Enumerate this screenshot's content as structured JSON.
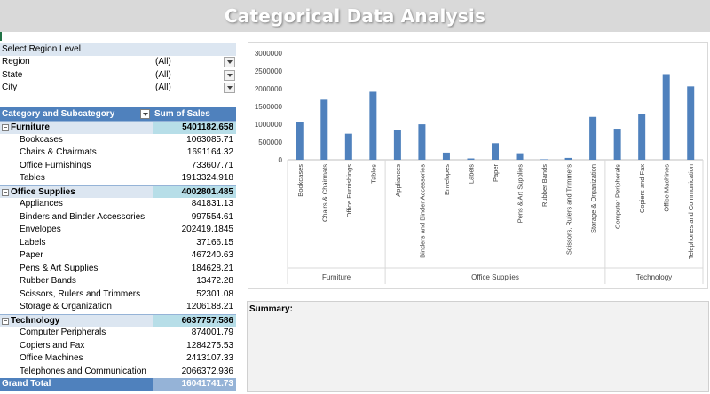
{
  "title": "Categorical Data Analysis",
  "filters": {
    "header": "Select Region Level",
    "items": [
      {
        "label": "Region",
        "value": "(All)"
      },
      {
        "label": "State",
        "value": "(All)"
      },
      {
        "label": "City",
        "value": "(All)"
      }
    ]
  },
  "pivot": {
    "col1": "Category and Subcategory",
    "col2": "Sum of Sales",
    "collapse_symbol": "−",
    "categories": [
      {
        "name": "Furniture",
        "total": "5401182.658",
        "items": [
          {
            "name": "Bookcases",
            "value": "1063085.71"
          },
          {
            "name": "Chairs & Chairmats",
            "value": "1691164.32"
          },
          {
            "name": "Office Furnishings",
            "value": "733607.71"
          },
          {
            "name": "Tables",
            "value": "1913324.918"
          }
        ]
      },
      {
        "name": "Office Supplies",
        "total": "4002801.485",
        "items": [
          {
            "name": "Appliances",
            "value": "841831.13"
          },
          {
            "name": "Binders and Binder Accessories",
            "value": "997554.61"
          },
          {
            "name": "Envelopes",
            "value": "202419.1845"
          },
          {
            "name": "Labels",
            "value": "37166.15"
          },
          {
            "name": "Paper",
            "value": "467240.63"
          },
          {
            "name": "Pens & Art Supplies",
            "value": "184628.21"
          },
          {
            "name": "Rubber Bands",
            "value": "13472.28"
          },
          {
            "name": "Scissors, Rulers and Trimmers",
            "value": "52301.08"
          },
          {
            "name": "Storage & Organization",
            "value": "1206188.21"
          }
        ]
      },
      {
        "name": "Technology",
        "total": "6637757.586",
        "items": [
          {
            "name": "Computer Peripherals",
            "value": "874001.79"
          },
          {
            "name": "Copiers and Fax",
            "value": "1284275.53"
          },
          {
            "name": "Office Machines",
            "value": "2413107.33"
          },
          {
            "name": "Telephones and Communication",
            "value": "2066372.936"
          }
        ]
      }
    ],
    "grand_total_label": "Grand Total",
    "grand_total": "16041741.73"
  },
  "chart_data": {
    "type": "bar",
    "groups": [
      {
        "name": "Furniture",
        "categories": [
          "Bookcases",
          "Chairs & Chairmats",
          "Office Furnishings",
          "Tables"
        ]
      },
      {
        "name": "Office Supplies",
        "categories": [
          "Appliances",
          "Binders and Binder Accessories",
          "Envelopes",
          "Labels",
          "Paper",
          "Pens & Art Supplies",
          "Rubber Bands",
          "Scissors, Rulers and Trimmers",
          "Storage & Organization"
        ]
      },
      {
        "name": "Technology",
        "categories": [
          "Computer Peripherals",
          "Copiers and Fax",
          "Office Machines",
          "Telephones and Communication"
        ]
      }
    ],
    "values": [
      1063085.71,
      1691164.32,
      733607.71,
      1913324.918,
      841831.13,
      997554.61,
      202419.1845,
      37166.15,
      467240.63,
      184628.21,
      13472.28,
      52301.08,
      1206188.21,
      874001.79,
      1284275.53,
      2413107.33,
      2066372.936
    ],
    "yticks": [
      "0",
      "500000",
      "1000000",
      "1500000",
      "2000000",
      "2500000",
      "3000000"
    ],
    "ylim": [
      0,
      3000000
    ],
    "bar_color": "#4f81bd",
    "grid": false,
    "legend": "none"
  },
  "summary": {
    "label": "Summary:"
  }
}
